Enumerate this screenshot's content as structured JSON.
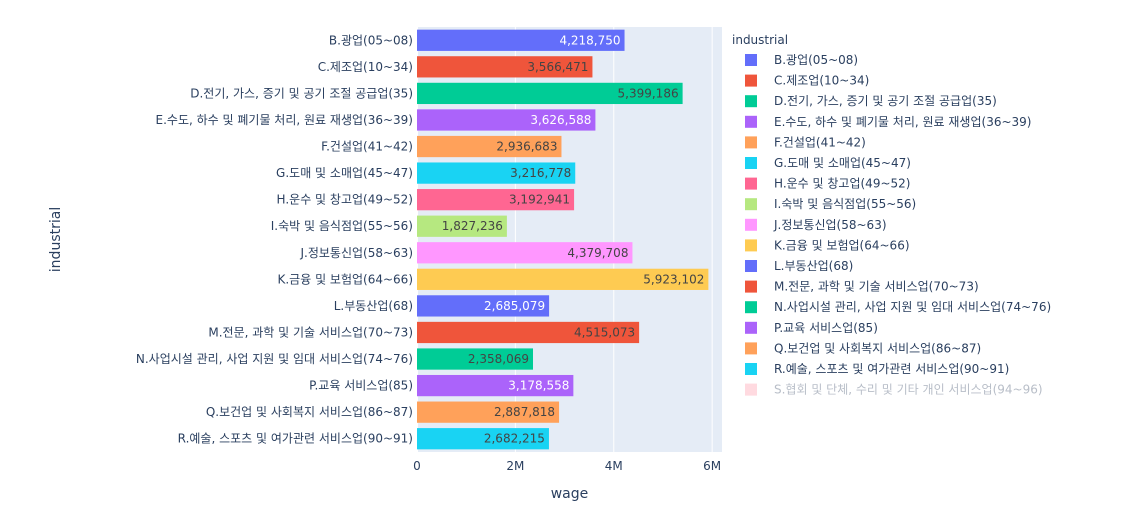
{
  "chart_data": {
    "type": "bar",
    "orientation": "horizontal",
    "xlabel": "wage",
    "ylabel": "industrial",
    "xlim": [
      0,
      6200000
    ],
    "x_ticks": [
      {
        "value": 0,
        "label": "0"
      },
      {
        "value": 2000000,
        "label": "2M"
      },
      {
        "value": 4000000,
        "label": "4M"
      },
      {
        "value": 6000000,
        "label": "6M"
      }
    ],
    "legend_title": "industrial",
    "legend_placement": "right",
    "series": [
      {
        "name": "B.광업(05~08)",
        "value": 4218750,
        "value_label": "4,218,750",
        "color": "#636efa",
        "label_color": "#ffffff"
      },
      {
        "name": "C.제조업(10~34)",
        "value": 3566471,
        "value_label": "3,566,471",
        "color": "#ef553b",
        "label_color": "#444444"
      },
      {
        "name": "D.전기, 가스, 증기 및 공기 조절 공급업(35)",
        "value": 5399186,
        "value_label": "5,399,186",
        "color": "#00cc96",
        "label_color": "#444444"
      },
      {
        "name": "E.수도, 하수 및 폐기물 처리, 원료 재생업(36~39)",
        "value": 3626588,
        "value_label": "3,626,588",
        "color": "#ab63fa",
        "label_color": "#ffffff"
      },
      {
        "name": "F.건설업(41~42)",
        "value": 2936683,
        "value_label": "2,936,683",
        "color": "#ffa15a",
        "label_color": "#444444"
      },
      {
        "name": "G.도매 및 소매업(45~47)",
        "value": 3216778,
        "value_label": "3,216,778",
        "color": "#19d3f3",
        "label_color": "#444444"
      },
      {
        "name": "H.운수 및 창고업(49~52)",
        "value": 3192941,
        "value_label": "3,192,941",
        "color": "#ff6692",
        "label_color": "#444444"
      },
      {
        "name": "I.숙박 및 음식점업(55~56)",
        "value": 1827236,
        "value_label": "1,827,236",
        "color": "#b6e880",
        "label_color": "#444444"
      },
      {
        "name": "J.정보통신업(58~63)",
        "value": 4379708,
        "value_label": "4,379,708",
        "color": "#ff97ff",
        "label_color": "#444444"
      },
      {
        "name": "K.금융 및 보험업(64~66)",
        "value": 5923102,
        "value_label": "5,923,102",
        "color": "#fecb52",
        "label_color": "#444444"
      },
      {
        "name": "L.부동산업(68)",
        "value": 2685079,
        "value_label": "2,685,079",
        "color": "#636efa",
        "label_color": "#ffffff"
      },
      {
        "name": "M.전문, 과학 및 기술 서비스업(70~73)",
        "value": 4515073,
        "value_label": "4,515,073",
        "color": "#ef553b",
        "label_color": "#444444"
      },
      {
        "name": "N.사업시설 관리, 사업 지원 및 임대 서비스업(74~76)",
        "value": 2358069,
        "value_label": "2,358,069",
        "color": "#00cc96",
        "label_color": "#444444"
      },
      {
        "name": "P.교육 서비스업(85)",
        "value": 3178558,
        "value_label": "3,178,558",
        "color": "#ab63fa",
        "label_color": "#ffffff"
      },
      {
        "name": "Q.보건업 및 사회복지 서비스업(86~87)",
        "value": 2887818,
        "value_label": "2,887,818",
        "color": "#ffa15a",
        "label_color": "#444444"
      },
      {
        "name": "R.예술, 스포츠 및 여가관련 서비스업(90~91)",
        "value": 2682215,
        "value_label": "2,682,215",
        "color": "#19d3f3",
        "label_color": "#444444"
      }
    ],
    "hidden_legend_entries": [
      {
        "name": "S.협회 및 단체, 수리 및 기타 개인 서비스업(94~96)",
        "color": "#ffb6c1"
      }
    ],
    "grid": true,
    "plot_bg": "#e5ecf6"
  }
}
